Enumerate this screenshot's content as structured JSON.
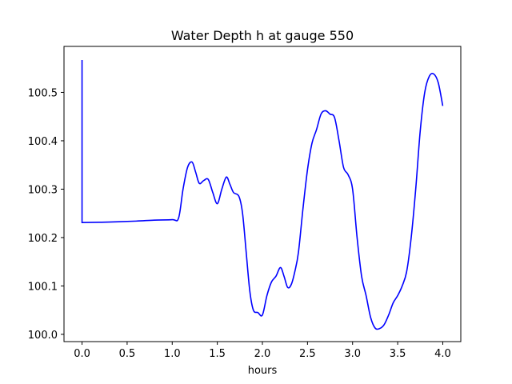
{
  "chart_data": {
    "type": "line",
    "title": "Water Depth h at gauge 550",
    "xlabel": "hours",
    "ylabel": "",
    "xlim": [
      -0.2,
      4.2
    ],
    "ylim": [
      99.985,
      100.595
    ],
    "xticks": [
      0.0,
      0.5,
      1.0,
      1.5,
      2.0,
      2.5,
      3.0,
      3.5,
      4.0
    ],
    "xtick_labels": [
      "0.0",
      "0.5",
      "1.0",
      "1.5",
      "2.0",
      "2.5",
      "3.0",
      "3.5",
      "4.0"
    ],
    "yticks": [
      100.0,
      100.1,
      100.2,
      100.3,
      100.4,
      100.5
    ],
    "ytick_labels": [
      "100.0",
      "100.1",
      "100.2",
      "100.3",
      "100.4",
      "100.5"
    ],
    "grid": false,
    "color": "#0000ff",
    "series": [
      {
        "name": "",
        "x": [
          0.0,
          0.0,
          0.0,
          0.3,
          0.6,
          0.8,
          1.0,
          1.07,
          1.12,
          1.17,
          1.22,
          1.26,
          1.3,
          1.35,
          1.4,
          1.45,
          1.5,
          1.55,
          1.6,
          1.64,
          1.68,
          1.74,
          1.78,
          1.82,
          1.86,
          1.9,
          1.95,
          2.0,
          2.05,
          2.1,
          2.15,
          2.2,
          2.24,
          2.28,
          2.32,
          2.36,
          2.4,
          2.45,
          2.5,
          2.55,
          2.6,
          2.65,
          2.7,
          2.75,
          2.8,
          2.85,
          2.9,
          2.95,
          3.0,
          3.05,
          3.1,
          3.15,
          3.2,
          3.25,
          3.3,
          3.35,
          3.4,
          3.45,
          3.5,
          3.55,
          3.6,
          3.65,
          3.7,
          3.75,
          3.8,
          3.85,
          3.9,
          3.95,
          4.0
        ],
        "y": [
          100.567,
          100.231,
          100.231,
          100.232,
          100.234,
          100.236,
          100.237,
          100.24,
          100.3,
          100.345,
          100.356,
          100.335,
          100.312,
          100.318,
          100.32,
          100.293,
          100.27,
          100.3,
          100.325,
          100.31,
          100.293,
          100.285,
          100.25,
          100.17,
          100.09,
          100.05,
          100.045,
          100.04,
          100.08,
          100.108,
          100.12,
          100.138,
          100.12,
          100.097,
          100.103,
          100.13,
          100.17,
          100.26,
          100.34,
          100.395,
          100.423,
          100.455,
          100.462,
          100.455,
          100.448,
          100.4,
          100.345,
          100.33,
          100.3,
          100.2,
          100.12,
          100.08,
          100.035,
          100.013,
          100.012,
          100.02,
          100.04,
          100.065,
          100.08,
          100.1,
          100.13,
          100.2,
          100.3,
          100.42,
          100.5,
          100.533,
          100.538,
          100.52,
          100.472
        ]
      }
    ]
  }
}
